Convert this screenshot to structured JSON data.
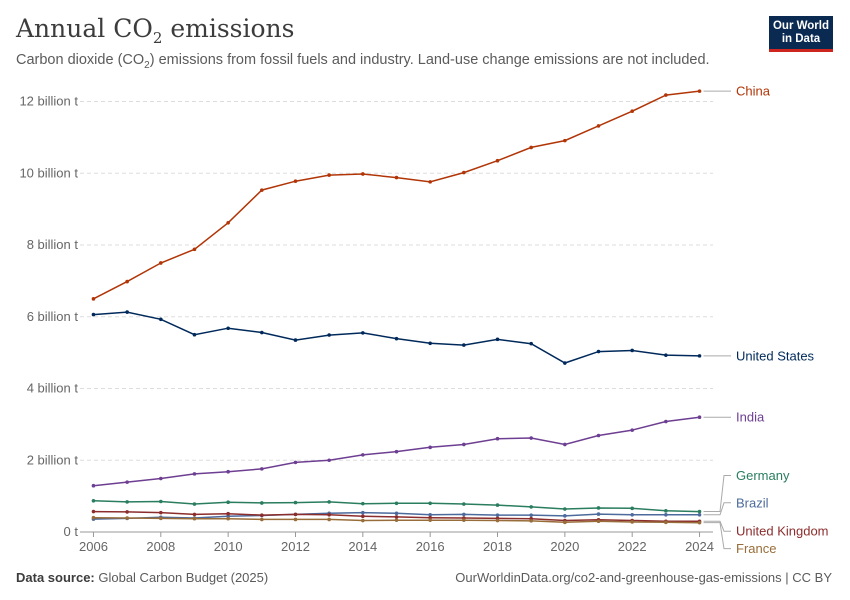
{
  "header": {
    "title_main": "Annual CO",
    "title_sub": "2",
    "title_end": " emissions",
    "subtitle_a": "Carbon dioxide (CO",
    "subtitle_sub": "2",
    "subtitle_b": ") emissions from fossil fuels and industry. Land-use change emissions are not included."
  },
  "logo": {
    "line1": "Our World",
    "line2": "in Data"
  },
  "footer": {
    "source_label": "Data source:",
    "source_value": " Global Carbon Budget (2025)",
    "right": "OurWorldinData.org/co2-and-greenhouse-gas-emissions | CC BY"
  },
  "chart_data": {
    "type": "line",
    "title": "Annual CO₂ emissions",
    "xlabel": "",
    "ylabel": "",
    "xlim": [
      2005.6,
      2024.4
    ],
    "ylim": [
      0,
      12.6
    ],
    "grid": true,
    "x": [
      2006,
      2007,
      2008,
      2009,
      2010,
      2011,
      2012,
      2013,
      2014,
      2015,
      2016,
      2017,
      2018,
      2019,
      2020,
      2021,
      2022,
      2023,
      2024
    ],
    "x_ticks": [
      {
        "value": 2006,
        "label": "2006"
      },
      {
        "value": 2008,
        "label": "2008"
      },
      {
        "value": 2010,
        "label": "2010"
      },
      {
        "value": 2012,
        "label": "2012"
      },
      {
        "value": 2014,
        "label": "2014"
      },
      {
        "value": 2016,
        "label": "2016"
      },
      {
        "value": 2018,
        "label": "2018"
      },
      {
        "value": 2020,
        "label": "2020"
      },
      {
        "value": 2022,
        "label": "2022"
      },
      {
        "value": 2024,
        "label": "2024"
      }
    ],
    "y_ticks": [
      {
        "value": 0,
        "label": "0 t"
      },
      {
        "value": 2,
        "label": "2 billion t"
      },
      {
        "value": 4,
        "label": "4 billion t"
      },
      {
        "value": 6,
        "label": "6 billion t"
      },
      {
        "value": 8,
        "label": "8 billion t"
      },
      {
        "value": 10,
        "label": "10 billion t"
      },
      {
        "value": 12,
        "label": "12 billion t"
      }
    ],
    "series": [
      {
        "name": "China",
        "color": "#b13507",
        "label_offset": 0,
        "values": [
          6.5,
          6.98,
          7.5,
          7.88,
          8.62,
          9.53,
          9.78,
          9.95,
          9.98,
          9.88,
          9.76,
          10.02,
          10.35,
          10.72,
          10.91,
          11.32,
          11.73,
          12.18,
          12.29
        ]
      },
      {
        "name": "United States",
        "color": "#00295b",
        "label_offset": 0,
        "values": [
          6.06,
          6.13,
          5.93,
          5.5,
          5.68,
          5.56,
          5.35,
          5.49,
          5.55,
          5.39,
          5.26,
          5.21,
          5.37,
          5.25,
          4.71,
          5.03,
          5.06,
          4.93,
          4.91
        ]
      },
      {
        "name": "India",
        "color": "#6d3e91",
        "label_offset": 0,
        "values": [
          1.29,
          1.39,
          1.49,
          1.62,
          1.68,
          1.76,
          1.94,
          2.0,
          2.15,
          2.24,
          2.36,
          2.44,
          2.6,
          2.62,
          2.44,
          2.69,
          2.84,
          3.08,
          3.2
        ]
      },
      {
        "name": "Germany",
        "color": "#2a7d5f",
        "label_offset": -36,
        "values": [
          0.87,
          0.84,
          0.85,
          0.78,
          0.83,
          0.81,
          0.82,
          0.84,
          0.79,
          0.8,
          0.8,
          0.78,
          0.75,
          0.7,
          0.64,
          0.67,
          0.66,
          0.59,
          0.57
        ]
      },
      {
        "name": "Brazil",
        "color": "#4c6a9c",
        "label_offset": -12,
        "values": [
          0.36,
          0.38,
          0.41,
          0.39,
          0.44,
          0.46,
          0.49,
          0.52,
          0.54,
          0.52,
          0.48,
          0.49,
          0.47,
          0.47,
          0.45,
          0.5,
          0.48,
          0.48,
          0.48
        ]
      },
      {
        "name": "United Kingdom",
        "color": "#8c2d2d",
        "label_offset": 10,
        "values": [
          0.57,
          0.56,
          0.54,
          0.49,
          0.51,
          0.47,
          0.49,
          0.48,
          0.44,
          0.42,
          0.4,
          0.39,
          0.38,
          0.37,
          0.32,
          0.34,
          0.32,
          0.3,
          0.3
        ]
      },
      {
        "name": "France",
        "color": "#996d39",
        "label_offset": 26,
        "values": [
          0.4,
          0.39,
          0.38,
          0.37,
          0.37,
          0.35,
          0.35,
          0.35,
          0.32,
          0.33,
          0.33,
          0.33,
          0.32,
          0.31,
          0.27,
          0.3,
          0.28,
          0.27,
          0.26
        ]
      }
    ]
  }
}
